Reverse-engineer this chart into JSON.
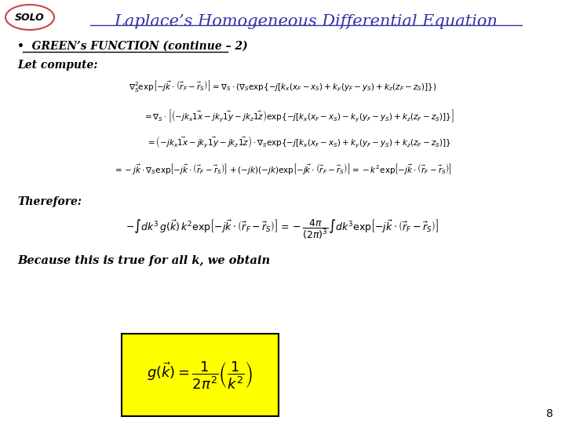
{
  "bg_color": "#ffffff",
  "title": "Laplace’s Homogeneous Differential Equation",
  "title_color": "#3333aa",
  "title_fontsize": 16,
  "solo_text": "SOLO",
  "solo_ellipse_color": "#cc4444",
  "bullet_label": "•  GREEN’s FUNCTION (continue – 2)",
  "let_compute": "Let compute:",
  "therefore": "Therefore:",
  "because": "Because this is true for all k, we obtain",
  "page_number": "8",
  "eq1": "\\nabla_S^2 \\exp\\!\\left[-j\\vec{k}\\cdot\\left(\\vec{r}_F - \\vec{r}_S\\right)\\right] = \\nabla_S \\cdot \\left(\\nabla_S \\exp\\!\\left\\{-j\\left[k_x(x_F-x_S)+k_y(y_F-y_S)+k_z(z_F-z_S)\\right]\\right\\}\\right)",
  "eq2": "= \\nabla_S \\cdot \\left[\\left(-jk_x\\vec{1x} - jk_y\\vec{1y} - jk_z\\vec{1z}\\right)\\exp\\!\\left\\{-j\\left[k_x(x_F-x_S)-k_y(y_F-y_S)+k_z(z_F-z_S)\\right]\\right\\}\\right]",
  "eq3": "= \\left(-jk_x\\vec{1x} - jk_y\\vec{1y} - jk_z\\vec{1z}\\right) \\cdot \\nabla_S \\exp\\!\\left\\{-j\\left[k_x(x_F-x_S)+k_y(y_F-y_S)+k_z(z_F-z_S)\\right]\\right\\}",
  "eq4": "= -j\\vec{k}\\cdot\\nabla_S\\exp\\!\\left[-j\\vec{k}\\cdot\\left(\\vec{r}_F-\\vec{r}_S\\right)\\right] + (-jk)(-jk)\\exp\\!\\left[-j\\vec{k}\\cdot\\left(\\vec{r}_F-\\vec{r}_S\\right)\\right] = -k^2\\exp\\!\\left[-j\\vec{k}\\cdot\\left(\\vec{r}_F-\\vec{r}_S\\right)\\right]",
  "eq5": "-\\int dk^3\\, g(\\vec{k})\\,k^2 \\exp\\!\\left[-j\\vec{k}\\cdot\\left(\\vec{r}_F-\\vec{r}_S\\right)\\right] = -\\dfrac{4\\pi}{(2\\pi)^3}\\int dk^3 \\exp\\!\\left[-j\\vec{k}\\cdot\\left(\\vec{r}_F-\\vec{r}_S\\right)\\right]",
  "eq6": "g(\\vec{k}) = \\dfrac{1}{2\\pi^2}\\left(\\dfrac{1}{k^2}\\right)",
  "box_color": "#ffff00",
  "box_edge_color": "#000000"
}
